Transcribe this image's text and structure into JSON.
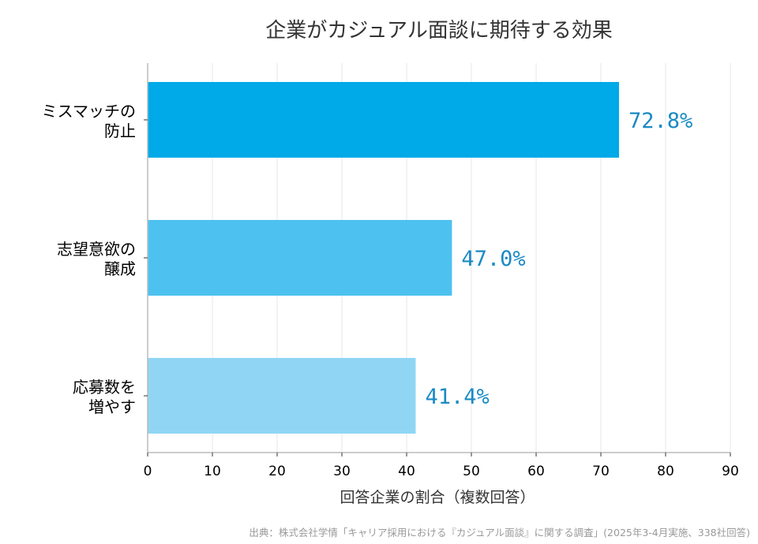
{
  "chart_data": {
    "type": "bar",
    "orientation": "horizontal",
    "title": "企業がカジュアル面談に期待する効果",
    "xlabel": "回答企業の割合（複数回答）",
    "ylabel": "",
    "categories": [
      [
        "ミスマッチの",
        "防止"
      ],
      [
        "志望意欲の",
        "醸成"
      ],
      [
        "応募数を",
        "増やす"
      ]
    ],
    "values": [
      72.8,
      47.0,
      41.4
    ],
    "value_labels": [
      "72.8%",
      "47.0%",
      "41.4%"
    ],
    "bar_colors": [
      "#00a9e8",
      "#4dc1f0",
      "#90d6f4"
    ],
    "value_label_color": "#1a8ac4",
    "xlim": [
      0,
      90
    ],
    "xticks": [
      0,
      10,
      20,
      30,
      40,
      50,
      60,
      70,
      80,
      90
    ],
    "grid": "vertical",
    "legend": "none"
  },
  "source": "出典：株式会社学情「キャリア採用における『カジュアル面談』に関する調査」(2025年3-4月実施、338社回答)"
}
